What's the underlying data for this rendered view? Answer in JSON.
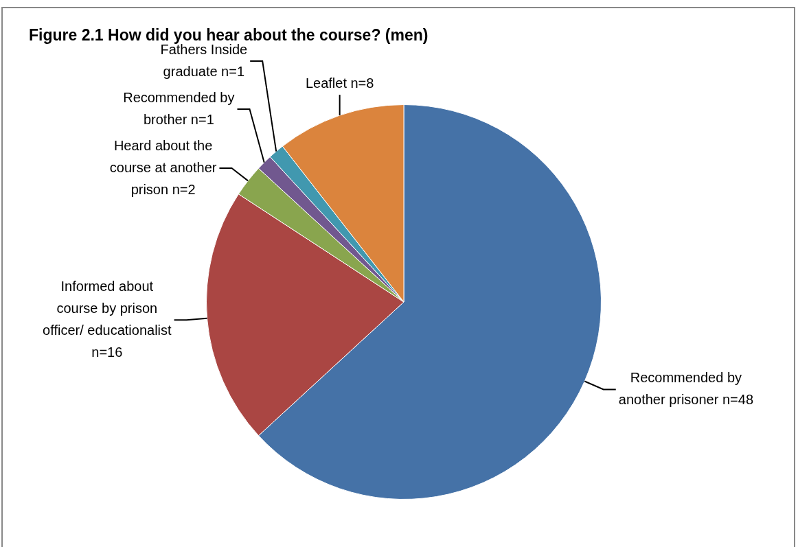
{
  "chart_data": {
    "type": "pie",
    "title": "Figure 2.1 How did you hear about the course? (men)",
    "categories": [
      "Recommended by another prisoner",
      "Informed about course by prison officer/ educationalist",
      "Heard about the course at another prison",
      "Recommended by brother",
      "Fathers Inside graduate",
      "Leaflet"
    ],
    "values": [
      48,
      16,
      2,
      1,
      1,
      8
    ],
    "value_labels": [
      "n=48",
      "n=16",
      "n=2",
      "n=1",
      "n=1",
      "n=8"
    ],
    "colors": [
      "#4572a7",
      "#aa4643",
      "#89a54e",
      "#71588f",
      "#4198af",
      "#db843d"
    ],
    "legend": false
  }
}
